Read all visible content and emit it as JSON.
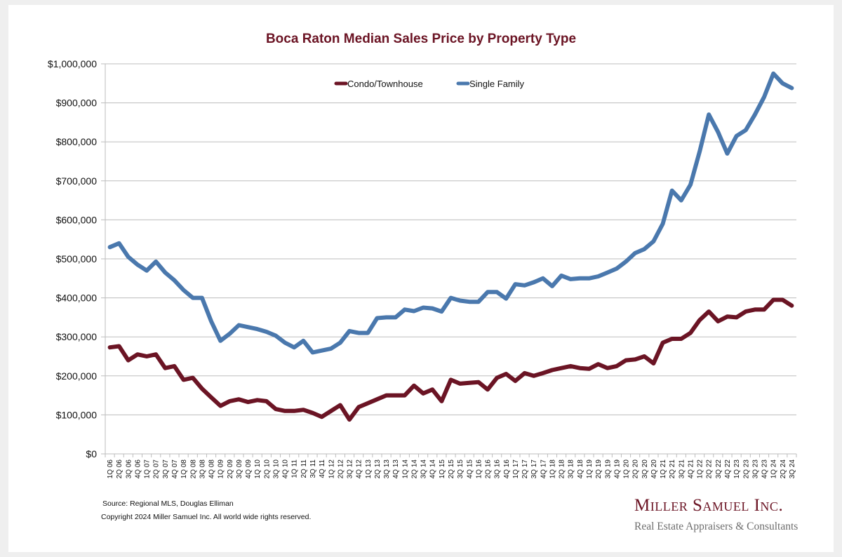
{
  "chart_data": {
    "type": "line",
    "title": "Boca Raton Median Sales Price by Property Type",
    "xlabel": "",
    "ylabel": "",
    "ylim": [
      0,
      1000000
    ],
    "yticks": [
      0,
      100000,
      200000,
      300000,
      400000,
      500000,
      600000,
      700000,
      800000,
      900000,
      1000000
    ],
    "ytick_labels": [
      "$0",
      "$100,000",
      "$200,000",
      "$300,000",
      "$400,000",
      "$500,000",
      "$600,000",
      "$700,000",
      "$800,000",
      "$900,000",
      "$1,000,000"
    ],
    "grid": "horizontal",
    "legend_position": "top-center",
    "categories": [
      "1Q 06",
      "2Q 06",
      "3Q 06",
      "4Q 06",
      "1Q 07",
      "2Q 07",
      "3Q 07",
      "4Q 07",
      "1Q 08",
      "2Q 08",
      "3Q 08",
      "4Q 08",
      "1Q 09",
      "2Q 09",
      "3Q 09",
      "4Q 09",
      "1Q 10",
      "2Q 10",
      "3Q 10",
      "4Q 10",
      "1Q 11",
      "2Q 11",
      "3Q 11",
      "4Q 11",
      "1Q 12",
      "2Q 12",
      "3Q 12",
      "4Q 12",
      "1Q 13",
      "2Q 13",
      "3Q 13",
      "4Q 13",
      "1Q 14",
      "2Q 14",
      "3Q 14",
      "4Q 14",
      "1Q 15",
      "2Q 15",
      "3Q 15",
      "4Q 15",
      "1Q 16",
      "2Q 16",
      "3Q 16",
      "4Q 16",
      "1Q 17",
      "2Q 17",
      "3Q 17",
      "4Q 17",
      "1Q 18",
      "2Q 18",
      "3Q 18",
      "4Q 18",
      "1Q 19",
      "2Q 19",
      "3Q 19",
      "4Q 19",
      "1Q 20",
      "2Q 20",
      "3Q 20",
      "4Q 20",
      "1Q 21",
      "2Q 21",
      "3Q 21",
      "4Q 21",
      "1Q 22",
      "2Q 22",
      "3Q 22",
      "4Q 22",
      "1Q 23",
      "2Q 23",
      "3Q 23",
      "4Q 23",
      "1Q 24",
      "2Q 24",
      "3Q 24"
    ],
    "series": [
      {
        "name": "Condo/Townhouse",
        "color": "#6b1424",
        "values": [
          273000,
          276000,
          240000,
          255000,
          250000,
          255000,
          220000,
          225000,
          190000,
          195000,
          167000,
          145000,
          123000,
          135000,
          140000,
          133000,
          138000,
          135000,
          115000,
          110000,
          110000,
          113000,
          105000,
          95000,
          110000,
          125000,
          88000,
          120000,
          130000,
          140000,
          150000,
          150000,
          150000,
          175000,
          155000,
          165000,
          135000,
          190000,
          180000,
          182000,
          184000,
          165000,
          195000,
          205000,
          187000,
          207000,
          200000,
          207000,
          215000,
          220000,
          225000,
          220000,
          218000,
          230000,
          220000,
          225000,
          240000,
          242000,
          250000,
          232000,
          285000,
          295000,
          295000,
          310000,
          343000,
          365000,
          340000,
          352000,
          350000,
          365000,
          370000,
          370000,
          395000,
          395000,
          380000
        ]
      },
      {
        "name": "Single Family",
        "color": "#4a78ad",
        "values": [
          530000,
          540000,
          505000,
          485000,
          470000,
          493000,
          465000,
          445000,
          420000,
          400000,
          400000,
          340000,
          290000,
          308000,
          330000,
          325000,
          320000,
          313000,
          303000,
          285000,
          273000,
          290000,
          260000,
          265000,
          270000,
          285000,
          315000,
          310000,
          310000,
          348000,
          350000,
          350000,
          370000,
          366000,
          375000,
          373000,
          365000,
          400000,
          393000,
          390000,
          390000,
          415000,
          415000,
          398000,
          435000,
          432000,
          440000,
          450000,
          430000,
          457000,
          448000,
          450000,
          450000,
          455000,
          465000,
          475000,
          493000,
          515000,
          525000,
          545000,
          590000,
          675000,
          650000,
          690000,
          775000,
          870000,
          825000,
          770000,
          815000,
          830000,
          870000,
          915000,
          975000,
          950000,
          938000
        ]
      }
    ]
  },
  "footer": {
    "source": "Source: Regional MLS, Douglas Elliman",
    "copyright": "Copyright 2024 Miller Samuel Inc.  All world wide rights reserved."
  },
  "logo": {
    "name": "Miller Samuel Inc.",
    "tagline": "Real Estate Appraisers & Consultants"
  }
}
